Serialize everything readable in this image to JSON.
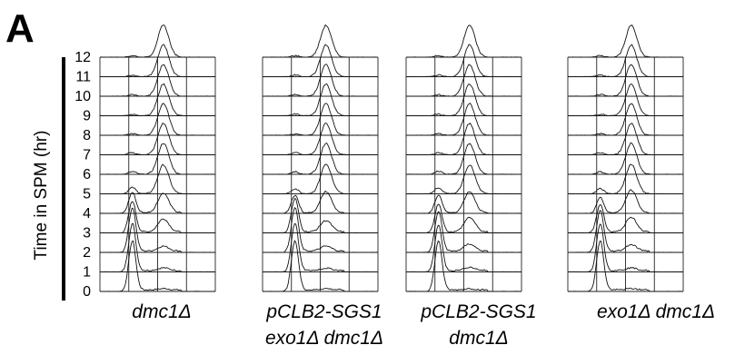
{
  "figure": {
    "panel_label": "A",
    "ylabel": "Time in SPM (hr)"
  },
  "chart_data": [
    {
      "type": "line",
      "title": "dmc1Δ",
      "title_lines": [
        "dmc1Δ"
      ],
      "ylabel": "Time in SPM (hr)",
      "time_points_hr": [
        0,
        1,
        2,
        3,
        4,
        5,
        6,
        7,
        8,
        9,
        10,
        11,
        12
      ],
      "yticks": [
        "0",
        "1",
        "2",
        "3",
        "4",
        "5",
        "6",
        "7",
        "8",
        "9",
        "10",
        "11",
        "12"
      ],
      "x": [
        0,
        4
      ],
      "series": [
        {
          "time_hr": 0,
          "peak_1c": 0.96,
          "peak_2c": 0.04
        },
        {
          "time_hr": 1,
          "peak_1c": 0.92,
          "peak_2c": 0.08
        },
        {
          "time_hr": 2,
          "peak_1c": 0.85,
          "peak_2c": 0.15
        },
        {
          "time_hr": 3,
          "peak_1c": 0.6,
          "peak_2c": 0.4
        },
        {
          "time_hr": 4,
          "peak_1c": 0.4,
          "peak_2c": 0.6
        },
        {
          "time_hr": 5,
          "peak_1c": 0.12,
          "peak_2c": 0.88
        },
        {
          "time_hr": 6,
          "peak_1c": 0.05,
          "peak_2c": 0.95
        },
        {
          "time_hr": 7,
          "peak_1c": 0.04,
          "peak_2c": 0.96
        },
        {
          "time_hr": 8,
          "peak_1c": 0.03,
          "peak_2c": 0.97
        },
        {
          "time_hr": 9,
          "peak_1c": 0.03,
          "peak_2c": 0.97
        },
        {
          "time_hr": 10,
          "peak_1c": 0.03,
          "peak_2c": 0.97
        },
        {
          "time_hr": 11,
          "peak_1c": 0.03,
          "peak_2c": 0.97
        },
        {
          "time_hr": 12,
          "peak_1c": 0.03,
          "peak_2c": 0.97
        }
      ]
    },
    {
      "type": "line",
      "title": "pCLB2-SGS1 exo1Δ dmc1Δ",
      "title_lines": [
        "pCLB2-SGS1",
        "exo1Δ dmc1Δ"
      ],
      "ylabel": "Time in SPM (hr)",
      "time_points_hr": [
        0,
        1,
        2,
        3,
        4,
        5,
        6,
        7,
        8,
        9,
        10,
        11,
        12
      ],
      "x": [
        0,
        4
      ],
      "series": [
        {
          "time_hr": 0,
          "peak_1c": 0.96,
          "peak_2c": 0.04
        },
        {
          "time_hr": 1,
          "peak_1c": 0.93,
          "peak_2c": 0.07
        },
        {
          "time_hr": 2,
          "peak_1c": 0.85,
          "peak_2c": 0.15
        },
        {
          "time_hr": 3,
          "peak_1c": 0.65,
          "peak_2c": 0.35
        },
        {
          "time_hr": 4,
          "peak_1c": 0.35,
          "peak_2c": 0.65
        },
        {
          "time_hr": 5,
          "peak_1c": 0.1,
          "peak_2c": 0.9
        },
        {
          "time_hr": 6,
          "peak_1c": 0.05,
          "peak_2c": 0.95
        },
        {
          "time_hr": 7,
          "peak_1c": 0.04,
          "peak_2c": 0.96
        },
        {
          "time_hr": 8,
          "peak_1c": 0.03,
          "peak_2c": 0.97
        },
        {
          "time_hr": 9,
          "peak_1c": 0.03,
          "peak_2c": 0.97
        },
        {
          "time_hr": 10,
          "peak_1c": 0.03,
          "peak_2c": 0.97
        },
        {
          "time_hr": 11,
          "peak_1c": 0.03,
          "peak_2c": 0.97
        },
        {
          "time_hr": 12,
          "peak_1c": 0.03,
          "peak_2c": 0.97
        }
      ]
    },
    {
      "type": "line",
      "title": "pCLB2-SGS1 dmc1Δ",
      "title_lines": [
        "pCLB2-SGS1",
        "dmc1Δ"
      ],
      "ylabel": "Time in SPM (hr)",
      "time_points_hr": [
        0,
        1,
        2,
        3,
        4,
        5,
        6,
        7,
        8,
        9,
        10,
        11,
        12
      ],
      "x": [
        0,
        4
      ],
      "series": [
        {
          "time_hr": 0,
          "peak_1c": 0.96,
          "peak_2c": 0.04
        },
        {
          "time_hr": 1,
          "peak_1c": 0.9,
          "peak_2c": 0.1
        },
        {
          "time_hr": 2,
          "peak_1c": 0.78,
          "peak_2c": 0.22
        },
        {
          "time_hr": 3,
          "peak_1c": 0.55,
          "peak_2c": 0.45
        },
        {
          "time_hr": 4,
          "peak_1c": 0.35,
          "peak_2c": 0.65
        },
        {
          "time_hr": 5,
          "peak_1c": 0.12,
          "peak_2c": 0.88
        },
        {
          "time_hr": 6,
          "peak_1c": 0.06,
          "peak_2c": 0.94
        },
        {
          "time_hr": 7,
          "peak_1c": 0.04,
          "peak_2c": 0.96
        },
        {
          "time_hr": 8,
          "peak_1c": 0.03,
          "peak_2c": 0.97
        },
        {
          "time_hr": 9,
          "peak_1c": 0.03,
          "peak_2c": 0.97
        },
        {
          "time_hr": 10,
          "peak_1c": 0.03,
          "peak_2c": 0.97
        },
        {
          "time_hr": 11,
          "peak_1c": 0.03,
          "peak_2c": 0.97
        },
        {
          "time_hr": 12,
          "peak_1c": 0.03,
          "peak_2c": 0.97
        }
      ]
    },
    {
      "type": "line",
      "title": "exo1Δ dmc1Δ",
      "title_lines": [
        "exo1Δ dmc1Δ"
      ],
      "ylabel": "Time in SPM (hr)",
      "time_points_hr": [
        0,
        1,
        2,
        3,
        4,
        5,
        6,
        7,
        8,
        9,
        10,
        11,
        12
      ],
      "x": [
        0,
        4
      ],
      "series": [
        {
          "time_hr": 0,
          "peak_1c": 0.96,
          "peak_2c": 0.04
        },
        {
          "time_hr": 1,
          "peak_1c": 0.92,
          "peak_2c": 0.08
        },
        {
          "time_hr": 2,
          "peak_1c": 0.8,
          "peak_2c": 0.2
        },
        {
          "time_hr": 3,
          "peak_1c": 0.55,
          "peak_2c": 0.45
        },
        {
          "time_hr": 4,
          "peak_1c": 0.3,
          "peak_2c": 0.7
        },
        {
          "time_hr": 5,
          "peak_1c": 0.1,
          "peak_2c": 0.9
        },
        {
          "time_hr": 6,
          "peak_1c": 0.05,
          "peak_2c": 0.95
        },
        {
          "time_hr": 7,
          "peak_1c": 0.04,
          "peak_2c": 0.96
        },
        {
          "time_hr": 8,
          "peak_1c": 0.03,
          "peak_2c": 0.97
        },
        {
          "time_hr": 9,
          "peak_1c": 0.03,
          "peak_2c": 0.97
        },
        {
          "time_hr": 10,
          "peak_1c": 0.03,
          "peak_2c": 0.97
        },
        {
          "time_hr": 11,
          "peak_1c": 0.03,
          "peak_2c": 0.97
        },
        {
          "time_hr": 12,
          "peak_1c": 0.03,
          "peak_2c": 0.97
        }
      ]
    }
  ]
}
